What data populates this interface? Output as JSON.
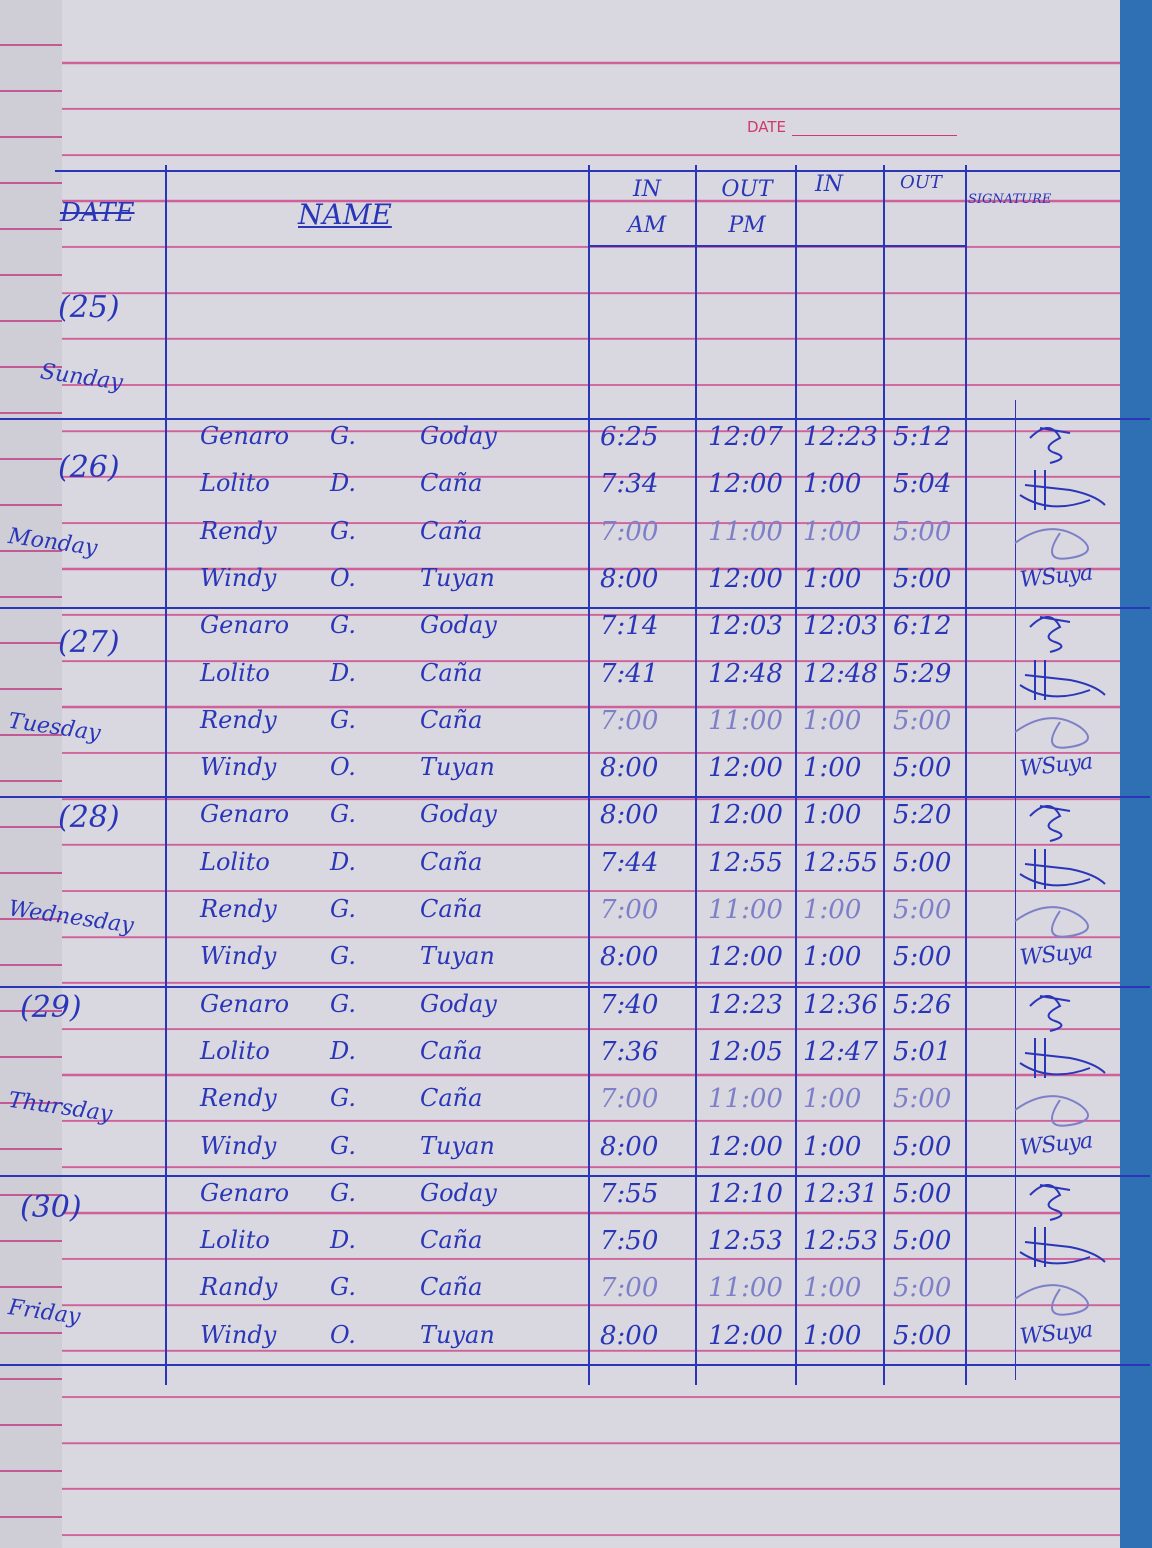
{
  "printed": {
    "date_label": "DATE"
  },
  "header": {
    "date": "DATE",
    "name": "NAME",
    "in_am": "IN AM",
    "out_pm": "OUT PM",
    "in": "IN",
    "out": "OUT",
    "signature": "SIGNATURE"
  },
  "days": [
    {
      "num": "(25)",
      "day": "Sunday"
    },
    {
      "num": "(26)",
      "day": "Monday"
    },
    {
      "num": "(27)",
      "day": "Tuesday"
    },
    {
      "num": "(28)",
      "day": "Wednesday"
    },
    {
      "num": "(29)",
      "day": "Thursday"
    },
    {
      "num": "(30)",
      "day": "Friday"
    }
  ],
  "rows": [
    {
      "first": "Genaro",
      "mi": "G.",
      "last": "Goday",
      "in_am": "6:25",
      "out_pm": "12:07",
      "in": "12:23",
      "out": "5:12",
      "faint": false,
      "sig": "Genaro"
    },
    {
      "first": "Lolito",
      "mi": "D.",
      "last": "Caña",
      "in_am": "7:34",
      "out_pm": "12:00",
      "in": "1:00",
      "out": "5:04",
      "faint": false,
      "sig": "Lolito"
    },
    {
      "first": "Rendy",
      "mi": "G.",
      "last": "Caña",
      "in_am": "7:00",
      "out_pm": "11:00",
      "in": "1:00",
      "out": "5:00",
      "faint": true,
      "sig": "Rendy"
    },
    {
      "first": "Windy",
      "mi": "O.",
      "last": "Tuyan",
      "in_am": "8:00",
      "out_pm": "12:00",
      "in": "1:00",
      "out": "5:00",
      "faint": false,
      "sig": "WSuya"
    },
    {
      "first": "Genaro",
      "mi": "G.",
      "last": "Goday",
      "in_am": "7:14",
      "out_pm": "12:03",
      "in": "12:03",
      "out": "6:12",
      "faint": false,
      "sig": "Genaro"
    },
    {
      "first": "Lolito",
      "mi": "D.",
      "last": "Caña",
      "in_am": "7:41",
      "out_pm": "12:48",
      "in": "12:48",
      "out": "5:29",
      "faint": false,
      "sig": "Lolito"
    },
    {
      "first": "Rendy",
      "mi": "G.",
      "last": "Caña",
      "in_am": "7:00",
      "out_pm": "11:00",
      "in": "1:00",
      "out": "5:00",
      "faint": true,
      "sig": "Rendy"
    },
    {
      "first": "Windy",
      "mi": "O.",
      "last": "Tuyan",
      "in_am": "8:00",
      "out_pm": "12:00",
      "in": "1:00",
      "out": "5:00",
      "faint": false,
      "sig": "WSuya"
    },
    {
      "first": "Genaro",
      "mi": "G.",
      "last": "Goday",
      "in_am": "8:00",
      "out_pm": "12:00",
      "in": "1:00",
      "out": "5:20",
      "faint": false,
      "sig": "Genaro"
    },
    {
      "first": "Lolito",
      "mi": "D.",
      "last": "Caña",
      "in_am": "7:44",
      "out_pm": "12:55",
      "in": "12:55",
      "out": "5:00",
      "faint": false,
      "sig": "Lolito"
    },
    {
      "first": "Rendy",
      "mi": "G.",
      "last": "Caña",
      "in_am": "7:00",
      "out_pm": "11:00",
      "in": "1:00",
      "out": "5:00",
      "faint": true,
      "sig": "Rendy"
    },
    {
      "first": "Windy",
      "mi": "G.",
      "last": "Tuyan",
      "in_am": "8:00",
      "out_pm": "12:00",
      "in": "1:00",
      "out": "5:00",
      "faint": false,
      "sig": "WSuya"
    },
    {
      "first": "Genaro",
      "mi": "G.",
      "last": "Goday",
      "in_am": "7:40",
      "out_pm": "12:23",
      "in": "12:36",
      "out": "5:26",
      "faint": false,
      "sig": "Genaro"
    },
    {
      "first": "Lolito",
      "mi": "D.",
      "last": "Caña",
      "in_am": "7:36",
      "out_pm": "12:05",
      "in": "12:47",
      "out": "5:01",
      "faint": false,
      "sig": "Lolito"
    },
    {
      "first": "Rendy",
      "mi": "G.",
      "last": "Caña",
      "in_am": "7:00",
      "out_pm": "11:00",
      "in": "1:00",
      "out": "5:00",
      "faint": true,
      "sig": "Rendy"
    },
    {
      "first": "Windy",
      "mi": "G.",
      "last": "Tuyan",
      "in_am": "8:00",
      "out_pm": "12:00",
      "in": "1:00",
      "out": "5:00",
      "faint": false,
      "sig": "WSuya"
    },
    {
      "first": "Genaro",
      "mi": "G.",
      "last": "Goday",
      "in_am": "7:55",
      "out_pm": "12:10",
      "in": "12:31",
      "out": "5:00",
      "faint": false,
      "sig": "Genaro"
    },
    {
      "first": "Lolito",
      "mi": "D.",
      "last": "Caña",
      "in_am": "7:50",
      "out_pm": "12:53",
      "in": "12:53",
      "out": "5:00",
      "faint": false,
      "sig": "Lolito"
    },
    {
      "first": "Randy",
      "mi": "G.",
      "last": "Caña",
      "in_am": "7:00",
      "out_pm": "11:00",
      "in": "1:00",
      "out": "5:00",
      "faint": true,
      "sig": "Rendy"
    },
    {
      "first": "Windy",
      "mi": "O.",
      "last": "Tuyan",
      "in_am": "8:00",
      "out_pm": "12:00",
      "in": "1:00",
      "out": "5:00",
      "faint": false,
      "sig": "WSuya"
    }
  ],
  "colors": {
    "ink": "#2a36b8",
    "rule": "#d0609a",
    "paper": "#d9d7df",
    "background": "#2f6fb3"
  }
}
